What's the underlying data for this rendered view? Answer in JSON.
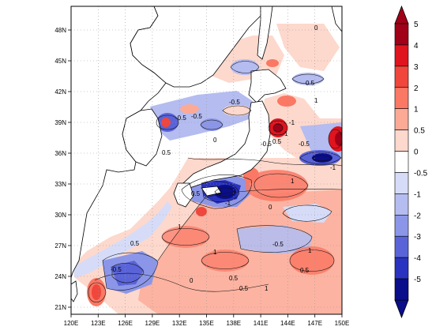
{
  "map": {
    "lon_ticks": [
      "120E",
      "123E",
      "126E",
      "129E",
      "132E",
      "135E",
      "138E",
      "141E",
      "144E",
      "147E",
      "150E"
    ],
    "lat_ticks": [
      "21N",
      "24N",
      "27N",
      "30N",
      "33N",
      "36N",
      "39N",
      "42N",
      "45N",
      "48N"
    ],
    "contour_labels": [
      "0",
      "0.5",
      "-0.5",
      "1",
      "-1",
      "-0.5",
      "0",
      "0.5",
      "1",
      "-1",
      "0.5",
      "1",
      "0.5",
      "0",
      "-0.5",
      "1",
      "0.5",
      "1",
      "0.5",
      "0",
      "-0.5",
      "1",
      "-0.5",
      "0.5",
      "1",
      "0.5",
      "-0.5",
      "-1",
      "-0.5"
    ]
  },
  "colorbar": {
    "labels": [
      "5",
      "4",
      "3",
      "2",
      "1",
      "0.5",
      "0",
      "-0.5",
      "-1",
      "-2",
      "-3",
      "-4",
      "-5"
    ],
    "colors": [
      "#a00018",
      "#e0141e",
      "#f0463c",
      "#fa7864",
      "#fcaa96",
      "#fdd8cc",
      "#ffffff",
      "#d6dcf8",
      "#b4bcf0",
      "#8c96e8",
      "#5a64d8",
      "#2a32c0",
      "#0a0e8a"
    ]
  },
  "colors": {
    "coast": "#000000",
    "grid": "#9a9a9a"
  }
}
